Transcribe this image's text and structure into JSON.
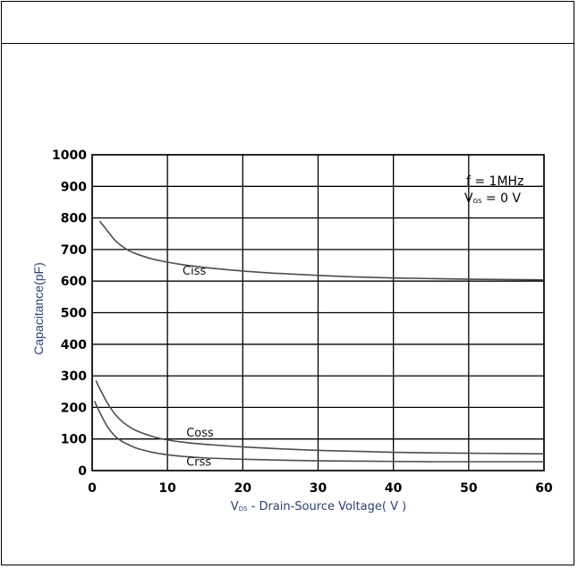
{
  "chart_data": {
    "type": "line",
    "title": "",
    "xlabel": "Vds - Drain-Source Voltage( V )",
    "xlabel_sub": "DS",
    "xlabel_prefix": "V",
    "xlabel_rest": " - Drain-Source Voltage( V )",
    "ylabel": "Capacitance(pF)",
    "xlim": [
      0,
      60
    ],
    "ylim": [
      0,
      1000
    ],
    "xticks": [
      0,
      10,
      20,
      30,
      40,
      50,
      60
    ],
    "yticks": [
      0,
      100,
      200,
      300,
      400,
      500,
      600,
      700,
      800,
      900,
      1000
    ],
    "grid": true,
    "annotation": {
      "line1": "f  =  1MHz",
      "line2_prefix": "V",
      "line2_sub": "GS",
      "line2_rest": " = 0 V"
    },
    "series": [
      {
        "name": "Ciss",
        "label_x": 12,
        "label_y": 620,
        "x": [
          1,
          2,
          3,
          4,
          5,
          6,
          8,
          10,
          12,
          15,
          20,
          25,
          30,
          35,
          40,
          45,
          50,
          55,
          60
        ],
        "values": [
          790,
          760,
          730,
          710,
          695,
          685,
          670,
          660,
          652,
          643,
          632,
          624,
          618,
          613,
          610,
          608,
          606,
          605,
          604
        ]
      },
      {
        "name": "Coss",
        "label_x": 12.5,
        "label_y": 108,
        "x": [
          0.5,
          1,
          2,
          3,
          4,
          5,
          6,
          8,
          10,
          12,
          15,
          20,
          25,
          30,
          35,
          40,
          45,
          50,
          55,
          60
        ],
        "values": [
          285,
          260,
          215,
          180,
          155,
          138,
          125,
          108,
          97,
          90,
          83,
          75,
          69,
          64,
          61,
          58,
          56,
          55,
          54,
          53
        ]
      },
      {
        "name": "Crss",
        "label_x": 12.5,
        "label_y": 15,
        "x": [
          0.3,
          1,
          2,
          3,
          4,
          5,
          6,
          8,
          10,
          12,
          15,
          20,
          25,
          30,
          35,
          40,
          45,
          50,
          55,
          60
        ],
        "values": [
          220,
          185,
          140,
          110,
          92,
          80,
          70,
          58,
          50,
          45,
          40,
          36,
          33,
          31,
          30,
          29,
          28,
          28,
          28,
          28
        ]
      }
    ],
    "colors": {
      "curve": "#4d4d4d",
      "grid": "#000000",
      "label_blue": "#2e3f73"
    }
  }
}
